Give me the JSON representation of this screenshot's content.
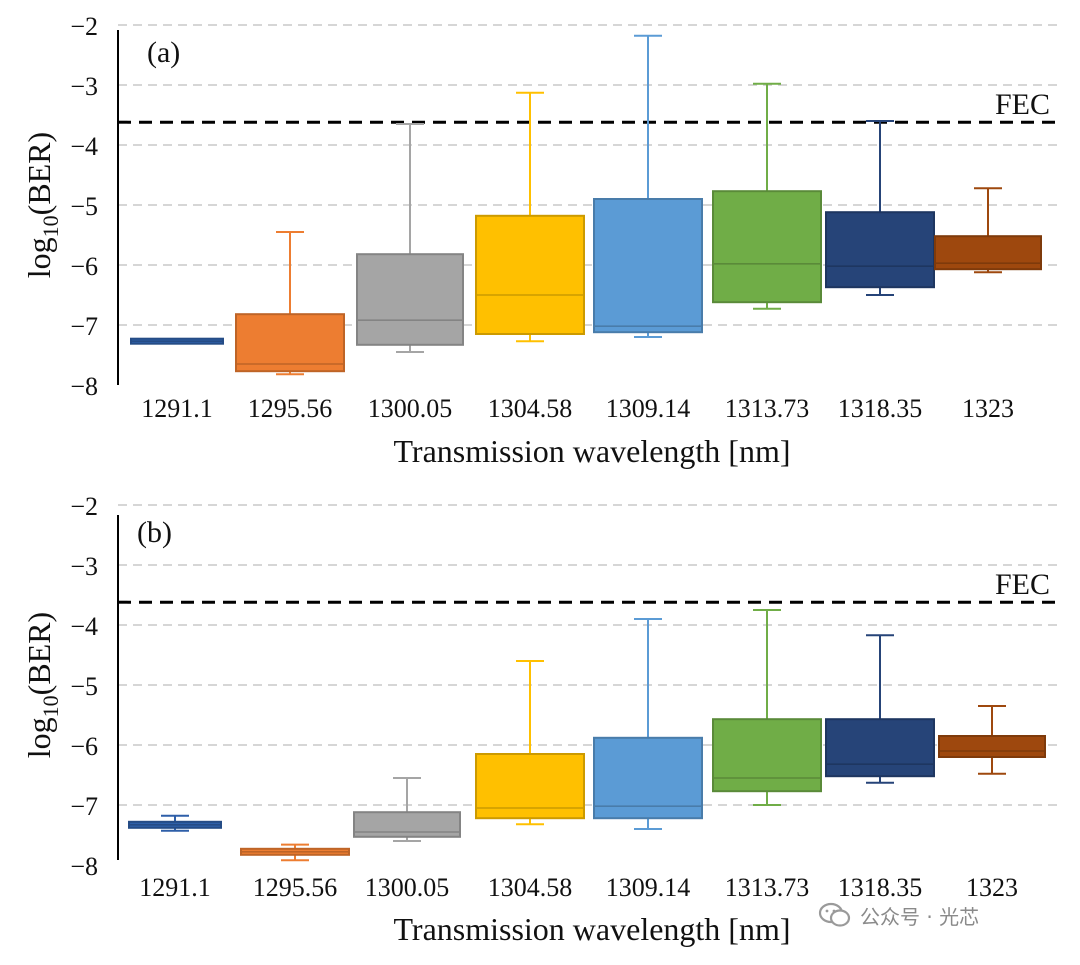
{
  "colors": {
    "1291.1": "#2e5fa8",
    "1295.56": "#ed7d31",
    "1300.05": "#a5a5a5",
    "1304.58": "#ffc000",
    "1309.14": "#5b9bd5",
    "1313.73": "#70ad47",
    "1318.35": "#264478",
    "1323": "#9e480e",
    "grid": "#c8c8c8",
    "fec_line": "#000000"
  },
  "watermark": {
    "text": "公众号 · 光芯",
    "icon": "wechat-icon"
  },
  "chart_data": [
    {
      "type": "box",
      "panel_label": "(a)",
      "xlabel": "Transmission wavelength [nm]",
      "ylabel": "log10(BER)",
      "ylabel_base": "log",
      "ylabel_sub": "10",
      "ylabel_tail": "(BER)",
      "ylim": [
        -8,
        -2
      ],
      "yticks": [
        "−2",
        "−3",
        "−4",
        "−5",
        "−6",
        "−7",
        "−8"
      ],
      "ytick_values": [
        -2,
        -3,
        -4,
        -5,
        -6,
        -7,
        -8
      ],
      "grid": "horizontal dashed",
      "categories": [
        "1291.1",
        "1295.56",
        "1300.05",
        "1304.58",
        "1309.14",
        "1313.73",
        "1318.35",
        "1323"
      ],
      "boxes": [
        {
          "min": -7.27,
          "q1": -7.27,
          "median": -7.27,
          "q3": -7.27,
          "max": -7.27
        },
        {
          "min": -7.82,
          "q1": -7.77,
          "median": -7.65,
          "q3": -6.82,
          "max": -5.45
        },
        {
          "min": -7.45,
          "q1": -7.33,
          "median": -6.92,
          "q3": -5.82,
          "max": -3.65
        },
        {
          "min": -7.27,
          "q1": -7.15,
          "median": -6.5,
          "q3": -5.18,
          "max": -3.13
        },
        {
          "min": -7.2,
          "q1": -7.12,
          "median": -7.02,
          "q3": -4.9,
          "max": -2.18
        },
        {
          "min": -6.73,
          "q1": -6.62,
          "median": -5.98,
          "q3": -4.77,
          "max": -2.98
        },
        {
          "min": -6.5,
          "q1": -6.37,
          "median": -6.02,
          "q3": -5.12,
          "max": -3.6
        },
        {
          "min": -6.12,
          "q1": -6.07,
          "median": -5.97,
          "q3": -5.52,
          "max": -4.72
        }
      ],
      "reference_line": {
        "label": "FEC",
        "value": -3.62
      }
    },
    {
      "type": "box",
      "panel_label": "(b)",
      "xlabel": "Transmission wavelength [nm]",
      "ylabel": "log10(BER)",
      "ylabel_base": "log",
      "ylabel_sub": "10",
      "ylabel_tail": "(BER)",
      "ylim": [
        -8,
        -2
      ],
      "yticks": [
        "−2",
        "−3",
        "−4",
        "−5",
        "−6",
        "−7",
        "−8"
      ],
      "ytick_values": [
        -2,
        -3,
        -4,
        -5,
        -6,
        -7,
        -8
      ],
      "grid": "horizontal dashed",
      "categories": [
        "1291.1",
        "1295.56",
        "1300.05",
        "1304.58",
        "1309.14",
        "1313.73",
        "1318.35",
        "1323"
      ],
      "boxes": [
        {
          "min": -7.43,
          "q1": -7.38,
          "median": -7.33,
          "q3": -7.28,
          "max": -7.18
        },
        {
          "min": -7.92,
          "q1": -7.83,
          "median": -7.78,
          "q3": -7.73,
          "max": -7.66
        },
        {
          "min": -7.6,
          "q1": -7.53,
          "median": -7.45,
          "q3": -7.12,
          "max": -6.55
        },
        {
          "min": -7.32,
          "q1": -7.22,
          "median": -7.05,
          "q3": -6.15,
          "max": -4.6
        },
        {
          "min": -7.4,
          "q1": -7.22,
          "median": -7.02,
          "q3": -5.88,
          "max": -3.9
        },
        {
          "min": -7.0,
          "q1": -6.77,
          "median": -6.55,
          "q3": -5.57,
          "max": -3.75
        },
        {
          "min": -6.63,
          "q1": -6.52,
          "median": -6.32,
          "q3": -5.57,
          "max": -4.17
        },
        {
          "min": -6.48,
          "q1": -6.2,
          "median": -6.1,
          "q3": -5.85,
          "max": -5.35
        }
      ],
      "reference_line": {
        "label": "FEC",
        "value": -3.62
      }
    }
  ]
}
